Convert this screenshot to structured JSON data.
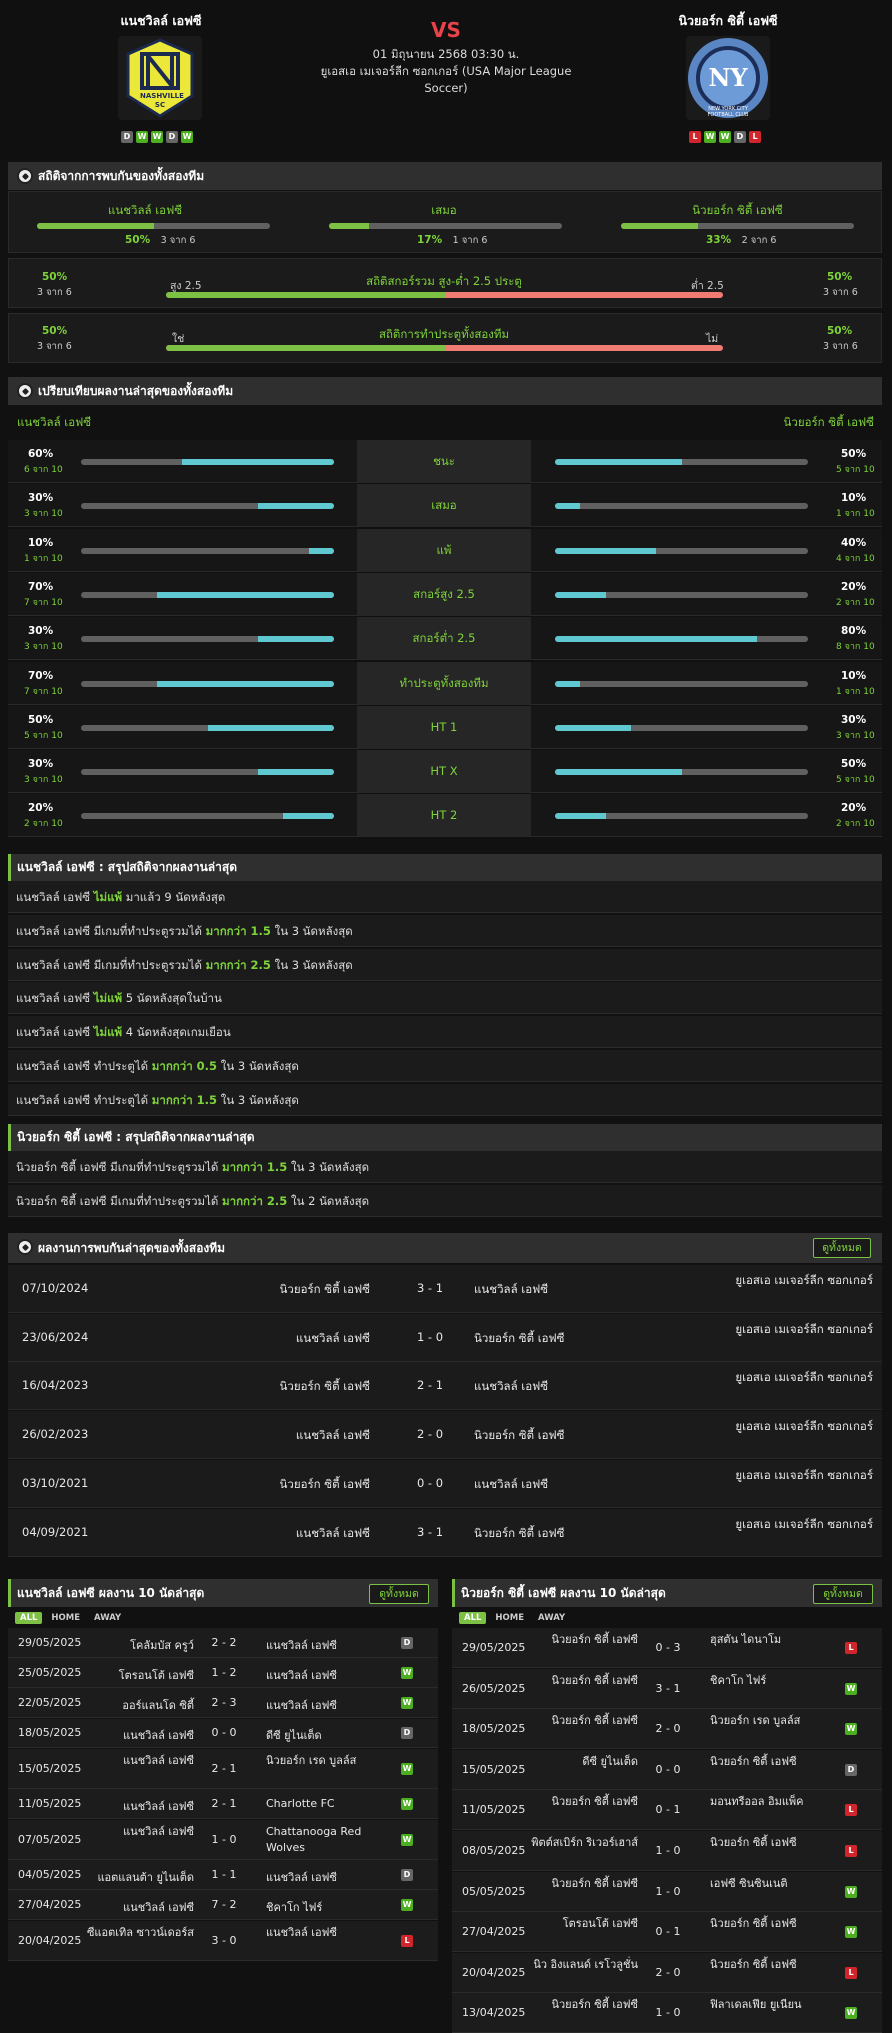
{
  "header": {
    "home_name": "แนชวิลล์ เอฟซี",
    "away_name": "นิวยอร์ก ซิตี้ เอฟซี",
    "vs": "VS",
    "date": "01 มิถุนายน 2568 03:30 น.",
    "league": "ยูเอสเอ เมเจอร์ลีก ซอกเกอร์ (USA Major League Soccer)",
    "home_form": [
      "D",
      "W",
      "W",
      "D",
      "W"
    ],
    "away_form": [
      "L",
      "W",
      "W",
      "D",
      "L"
    ],
    "home_logo_text": "NASHVILLE SC",
    "away_logo_text": "NEW YORK CITY FOOTBALL CLUB"
  },
  "h2h_stats": {
    "title": "สถิติจากการพบกันของทั้งสองทีม",
    "home_label": "แนชวิลล์ เอฟซี",
    "home_pct": "50%",
    "home_sub": "3 จาก 6",
    "draw_label": "เสมอ",
    "draw_pct": "17%",
    "draw_sub": "1 จาก 6",
    "away_label": "นิวยอร์ก ซิตี้ เอฟซี",
    "away_pct": "33%",
    "away_sub": "2 จาก 6",
    "home_frac": 0.5,
    "draw_frac": 0.17,
    "away_frac": 0.33,
    "ou": {
      "title": "สถิติสกอร์รวม สูง-ต่ำ 2.5 ประตู",
      "left_label": "สูง 2.5",
      "right_label": "ต่ำ 2.5",
      "left_pct": "50%",
      "left_sub": "3 จาก 6",
      "right_pct": "50%",
      "right_sub": "3 จาก 6",
      "frac": 0.5
    },
    "btts": {
      "title": "สถิติการทำประตูทั้งสองทีม",
      "left_label": "ใช่",
      "right_label": "ไม่",
      "left_pct": "50%",
      "left_sub": "3 จาก 6",
      "right_pct": "50%",
      "right_sub": "3 จาก 6",
      "frac": 0.5
    }
  },
  "compare": {
    "title": "เปรียบเทียบผลงานล่าสุดของทั้งสองทีม",
    "home_team": "แนชวิลล์ เอฟซี",
    "away_team": "นิวยอร์ก ซิตี้ เอฟซี",
    "rows": [
      {
        "label": "ชนะ",
        "hp": "60%",
        "hs": "6 จาก 10",
        "hf": 0.6,
        "ap": "50%",
        "as": "5 จาก 10",
        "af": 0.5
      },
      {
        "label": "เสมอ",
        "hp": "30%",
        "hs": "3 จาก 10",
        "hf": 0.3,
        "ap": "10%",
        "as": "1 จาก 10",
        "af": 0.1
      },
      {
        "label": "แพ้",
        "hp": "10%",
        "hs": "1 จาก 10",
        "hf": 0.1,
        "ap": "40%",
        "as": "4 จาก 10",
        "af": 0.4
      },
      {
        "label": "สกอร์สูง 2.5",
        "hp": "70%",
        "hs": "7 จาก 10",
        "hf": 0.7,
        "ap": "20%",
        "as": "2 จาก 10",
        "af": 0.2
      },
      {
        "label": "สกอร์ต่ำ 2.5",
        "hp": "30%",
        "hs": "3 จาก 10",
        "hf": 0.3,
        "ap": "80%",
        "as": "8 จาก 10",
        "af": 0.8
      },
      {
        "label": "ทำประตูทั้งสองทีม",
        "hp": "70%",
        "hs": "7 จาก 10",
        "hf": 0.7,
        "ap": "10%",
        "as": "1 จาก 10",
        "af": 0.1
      },
      {
        "label": "HT 1",
        "hp": "50%",
        "hs": "5 จาก 10",
        "hf": 0.5,
        "ap": "30%",
        "as": "3 จาก 10",
        "af": 0.3
      },
      {
        "label": "HT X",
        "hp": "30%",
        "hs": "3 จาก 10",
        "hf": 0.3,
        "ap": "50%",
        "as": "5 จาก 10",
        "af": 0.5
      },
      {
        "label": "HT 2",
        "hp": "20%",
        "hs": "2 จาก 10",
        "hf": 0.2,
        "ap": "20%",
        "as": "2 จาก 10",
        "af": 0.2
      }
    ]
  },
  "home_summary": {
    "title": "แนชวิลล์ เอฟซี : สรุปสถิติจากผลงานล่าสุด",
    "rows": [
      [
        "แนชวิลล์ เอฟซี ",
        "ไม่แพ้",
        " มาแล้ว 9 นัดหลังสุด"
      ],
      [
        "แนชวิลล์ เอฟซี มีเกมที่ทำประตูรวมได้ ",
        "มากกว่า 1.5",
        " ใน 3 นัดหลังสุด"
      ],
      [
        "แนชวิลล์ เอฟซี มีเกมที่ทำประตูรวมได้ ",
        "มากกว่า 2.5",
        " ใน 3 นัดหลังสุด"
      ],
      [
        "แนชวิลล์ เอฟซี ",
        "ไม่แพ้",
        " 5 นัดหลังสุดในบ้าน"
      ],
      [
        "แนชวิลล์ เอฟซี ",
        "ไม่แพ้",
        " 4 นัดหลังสุดเกมเยือน"
      ],
      [
        "แนชวิลล์ เอฟซี ทำประตูได้ ",
        "มากกว่า 0.5",
        " ใน 3 นัดหลังสุด"
      ],
      [
        "แนชวิลล์ เอฟซี ทำประตูได้ ",
        "มากกว่า 1.5",
        " ใน 3 นัดหลังสุด"
      ]
    ]
  },
  "away_summary": {
    "title": "นิวยอร์ก ซิตี้ เอฟซี : สรุปสถิติจากผลงานล่าสุด",
    "rows": [
      [
        "นิวยอร์ก ซิตี้ เอฟซี มีเกมที่ทำประตูรวมได้ ",
        "มากกว่า 1.5",
        " ใน 3 นัดหลังสุด"
      ],
      [
        "นิวยอร์ก ซิตี้ เอฟซี มีเกมที่ทำประตูรวมได้ ",
        "มากกว่า 2.5",
        " ใน 2 นัดหลังสุด"
      ]
    ]
  },
  "h2h_results": {
    "title": "ผลงานการพบกันล่าสุดของทั้งสองทีม",
    "view_all": "ดูทั้งหมด",
    "rows": [
      {
        "date": "07/10/2024",
        "home": "นิวยอร์ก ซิตี้ เอฟซี",
        "score": "3 - 1",
        "away": "แนชวิลล์ เอฟซี",
        "league": "ยูเอสเอ เมเจอร์ลีก ซอกเกอร์"
      },
      {
        "date": "23/06/2024",
        "home": "แนชวิลล์ เอฟซี",
        "score": "1 - 0",
        "away": "นิวยอร์ก ซิตี้ เอฟซี",
        "league": "ยูเอสเอ เมเจอร์ลีก ซอกเกอร์"
      },
      {
        "date": "16/04/2023",
        "home": "นิวยอร์ก ซิตี้ เอฟซี",
        "score": "2 - 1",
        "away": "แนชวิลล์ เอฟซี",
        "league": "ยูเอสเอ เมเจอร์ลีก ซอกเกอร์"
      },
      {
        "date": "26/02/2023",
        "home": "แนชวิลล์ เอฟซี",
        "score": "2 - 0",
        "away": "นิวยอร์ก ซิตี้ เอฟซี",
        "league": "ยูเอสเอ เมเจอร์ลีก ซอกเกอร์"
      },
      {
        "date": "03/10/2021",
        "home": "นิวยอร์ก ซิตี้ เอฟซี",
        "score": "0 - 0",
        "away": "แนชวิลล์ เอฟซี",
        "league": "ยูเอสเอ เมเจอร์ลีก ซอกเกอร์"
      },
      {
        "date": "04/09/2021",
        "home": "แนชวิลล์ เอฟซี",
        "score": "3 - 1",
        "away": "นิวยอร์ก ซิตี้ เอฟซี",
        "league": "ยูเอสเอ เมเจอร์ลีก ซอกเกอร์"
      }
    ]
  },
  "tabs": [
    "ALL",
    "HOME",
    "AWAY"
  ],
  "home_last10": {
    "title": "แนชวิลล์ เอฟซี ผลงาน 10 นัดล่าสุด",
    "view_all": "ดูทั้งหมด",
    "rows": [
      {
        "date": "29/05/2025",
        "home": "โคลัมบัส ครูว์",
        "score": "2 - 2",
        "away": "แนชวิลล์ เอฟซี",
        "r": "D"
      },
      {
        "date": "25/05/2025",
        "home": "โตรอนโต้ เอฟซี",
        "score": "1 - 2",
        "away": "แนชวิลล์ เอฟซี",
        "r": "W"
      },
      {
        "date": "22/05/2025",
        "home": "ออร์แลนโด ซิตี้",
        "score": "2 - 3",
        "away": "แนชวิลล์ เอฟซี",
        "r": "W"
      },
      {
        "date": "18/05/2025",
        "home": "แนชวิลล์ เอฟซี",
        "score": "0 - 0",
        "away": "ดีซี ยูไนเต็ด",
        "r": "D"
      },
      {
        "date": "15/05/2025",
        "home": "แนชวิลล์ เอฟซี",
        "score": "2 - 1",
        "away": "นิวยอร์ก เรด บูลล์ส",
        "r": "W"
      },
      {
        "date": "11/05/2025",
        "home": "แนชวิลล์ เอฟซี",
        "score": "2 - 1",
        "away": "Charlotte FC",
        "r": "W"
      },
      {
        "date": "07/05/2025",
        "home": "แนชวิลล์ เอฟซี",
        "score": "1 - 0",
        "away": "Chattanooga Red Wolves",
        "r": "W"
      },
      {
        "date": "04/05/2025",
        "home": "แอตแลนต้า ยูไนเต็ด",
        "score": "1 - 1",
        "away": "แนชวิลล์ เอฟซี",
        "r": "D"
      },
      {
        "date": "27/04/2025",
        "home": "แนชวิลล์ เอฟซี",
        "score": "7 - 2",
        "away": "ชิคาโก ไฟร์",
        "r": "W"
      },
      {
        "date": "20/04/2025",
        "home": "ซีแอตเทิล ซาวน์เดอร์ส",
        "score": "3 - 0",
        "away": "แนชวิลล์ เอฟซี",
        "r": "L"
      }
    ]
  },
  "away_last10": {
    "title": "นิวยอร์ก ซิตี้ เอฟซี ผลงาน 10 นัดล่าสุด",
    "view_all": "ดูทั้งหมด",
    "rows": [
      {
        "date": "29/05/2025",
        "home": "นิวยอร์ก ซิตี้ เอฟซี",
        "score": "0 - 3",
        "away": "ฮุสตัน ไดนาโม",
        "r": "L"
      },
      {
        "date": "26/05/2025",
        "home": "นิวยอร์ก ซิตี้ เอฟซี",
        "score": "3 - 1",
        "away": "ชิคาโก ไฟร์",
        "r": "W"
      },
      {
        "date": "18/05/2025",
        "home": "นิวยอร์ก ซิตี้ เอฟซี",
        "score": "2 - 0",
        "away": "นิวยอร์ก เรด บูลล์ส",
        "r": "W"
      },
      {
        "date": "15/05/2025",
        "home": "ดีซี ยูไนเต็ด",
        "score": "0 - 0",
        "away": "นิวยอร์ก ซิตี้ เอฟซี",
        "r": "D"
      },
      {
        "date": "11/05/2025",
        "home": "นิวยอร์ก ซิตี้ เอฟซี",
        "score": "0 - 1",
        "away": "มอนทรีออล อิมแพ็ค",
        "r": "L"
      },
      {
        "date": "08/05/2025",
        "home": "พิตต์สเบิร์ก ริเวอร์เฮาส์",
        "score": "1 - 0",
        "away": "นิวยอร์ก ซิตี้ เอฟซี",
        "r": "L"
      },
      {
        "date": "05/05/2025",
        "home": "นิวยอร์ก ซิตี้ เอฟซี",
        "score": "1 - 0",
        "away": "เอฟซี ซินซินเนติ",
        "r": "W"
      },
      {
        "date": "27/04/2025",
        "home": "โตรอนโต้ เอฟซี",
        "score": "0 - 1",
        "away": "นิวยอร์ก ซิตี้ เอฟซี",
        "r": "W"
      },
      {
        "date": "20/04/2025",
        "home": "นิว อิงแลนด์ เรโวลูชั่น",
        "score": "2 - 0",
        "away": "นิวยอร์ก ซิตี้ เอฟซี",
        "r": "L"
      },
      {
        "date": "13/04/2025",
        "home": "นิวยอร์ก ซิตี้ เอฟซี",
        "score": "1 - 0",
        "away": "ฟิลาเดลเฟีย ยูเนียน",
        "r": "W"
      }
    ]
  },
  "colors": {
    "green": "#7cc044",
    "red": "#f07b73",
    "cyan": "#5fc8d0",
    "loss": "#d0262b"
  }
}
